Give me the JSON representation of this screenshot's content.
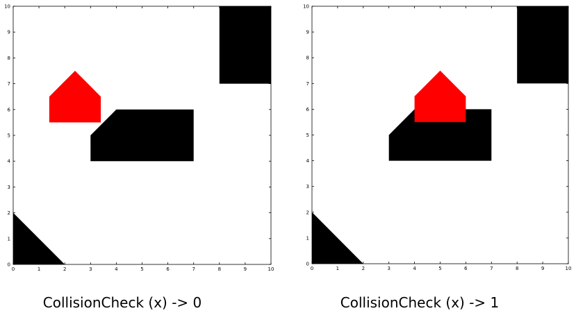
{
  "chart_data": [
    {
      "type": "area",
      "xlim": [
        0,
        10
      ],
      "ylim": [
        0,
        10
      ],
      "xticks": [
        "0",
        "1",
        "2",
        "3",
        "4",
        "5",
        "6",
        "7",
        "8",
        "9",
        "10"
      ],
      "yticks": [
        "0",
        "1",
        "2",
        "3",
        "4",
        "5",
        "6",
        "7",
        "8",
        "9",
        "10"
      ],
      "grid": false,
      "caption": "CollisionCheck (x) -> 0",
      "obstacles": [
        {
          "name": "triangle",
          "color": "#000000",
          "points": [
            [
              0,
              0
            ],
            [
              0,
              2
            ],
            [
              2,
              0
            ]
          ]
        },
        {
          "name": "pentagon",
          "color": "#000000",
          "points": [
            [
              3,
              4
            ],
            [
              7,
              4
            ],
            [
              7,
              6
            ],
            [
              4,
              6
            ],
            [
              3,
              5
            ]
          ]
        },
        {
          "name": "rectangle",
          "color": "#000000",
          "points": [
            [
              8,
              7
            ],
            [
              10,
              7
            ],
            [
              10,
              10
            ],
            [
              8,
              10
            ]
          ]
        }
      ],
      "robot": {
        "name": "robot",
        "color": "#ff0000",
        "points": [
          [
            1.4,
            5.5
          ],
          [
            3.4,
            5.5
          ],
          [
            3.4,
            6.5
          ],
          [
            2.4,
            7.5
          ],
          [
            1.4,
            6.5
          ]
        ]
      }
    },
    {
      "type": "area",
      "xlim": [
        0,
        10
      ],
      "ylim": [
        0,
        10
      ],
      "xticks": [
        "0",
        "1",
        "2",
        "3",
        "4",
        "5",
        "6",
        "7",
        "8",
        "9",
        "10"
      ],
      "yticks": [
        "0",
        "1",
        "2",
        "3",
        "4",
        "5",
        "6",
        "7",
        "8",
        "9",
        "10"
      ],
      "grid": false,
      "caption": "CollisionCheck (x) -> 1",
      "obstacles": [
        {
          "name": "triangle",
          "color": "#000000",
          "points": [
            [
              0,
              0
            ],
            [
              0,
              2
            ],
            [
              2,
              0
            ]
          ]
        },
        {
          "name": "pentagon",
          "color": "#000000",
          "points": [
            [
              3,
              4
            ],
            [
              7,
              4
            ],
            [
              7,
              6
            ],
            [
              4,
              6
            ],
            [
              3,
              5
            ]
          ]
        },
        {
          "name": "rectangle",
          "color": "#000000",
          "points": [
            [
              8,
              7
            ],
            [
              10,
              7
            ],
            [
              10,
              10
            ],
            [
              8,
              10
            ]
          ]
        }
      ],
      "robot": {
        "name": "robot",
        "color": "#ff0000",
        "points": [
          [
            4,
            5.5
          ],
          [
            6,
            5.5
          ],
          [
            6,
            6.5
          ],
          [
            5,
            7.5
          ],
          [
            4,
            6.5
          ]
        ]
      }
    }
  ]
}
